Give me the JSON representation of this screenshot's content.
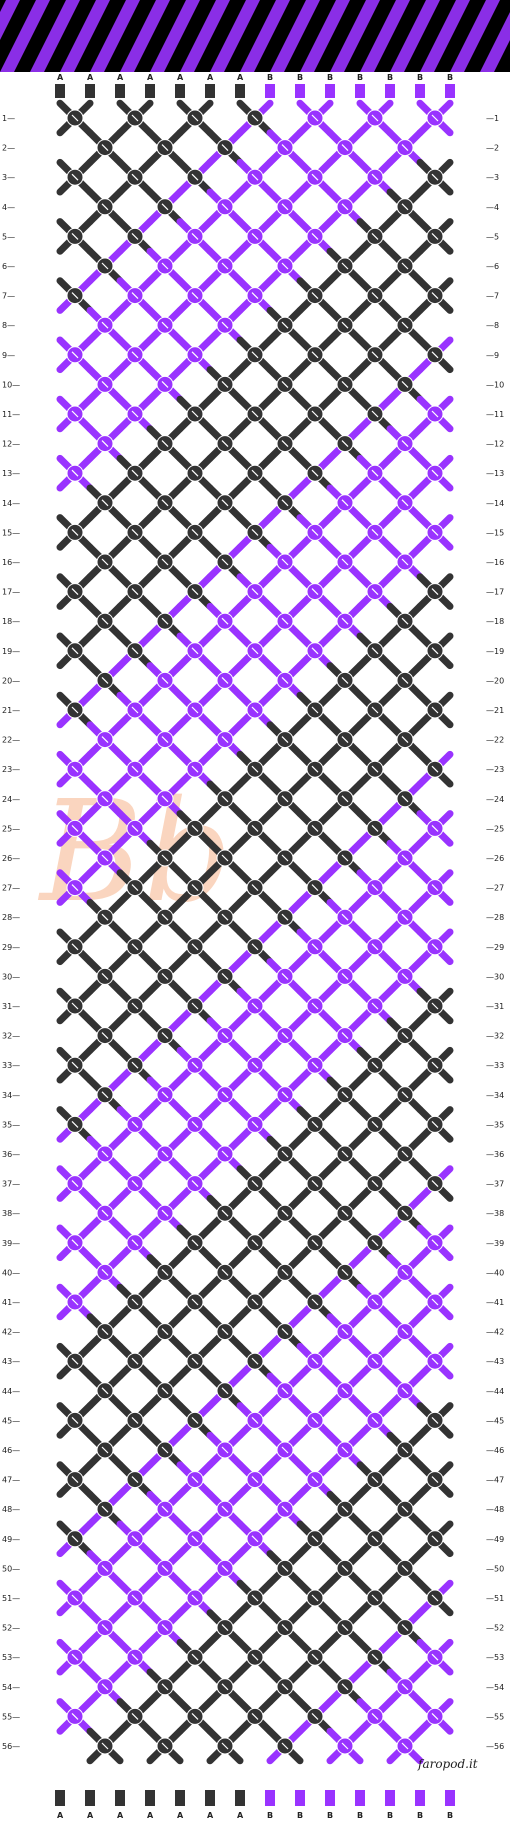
{
  "pattern": {
    "strand_labels_top": [
      "A",
      "A",
      "A",
      "A",
      "A",
      "A",
      "A",
      "B",
      "B",
      "B",
      "B",
      "B",
      "B",
      "B"
    ],
    "strand_labels_bottom": [
      "A",
      "A",
      "A",
      "A",
      "A",
      "A",
      "A",
      "B",
      "B",
      "B",
      "B",
      "B",
      "B",
      "B"
    ],
    "colors": {
      "A": "#333333",
      "B": "#9933ff",
      "preview_bg": "#000000"
    },
    "row_count": 56,
    "credit": "faropod.it",
    "watermark_text": "Bb"
  }
}
